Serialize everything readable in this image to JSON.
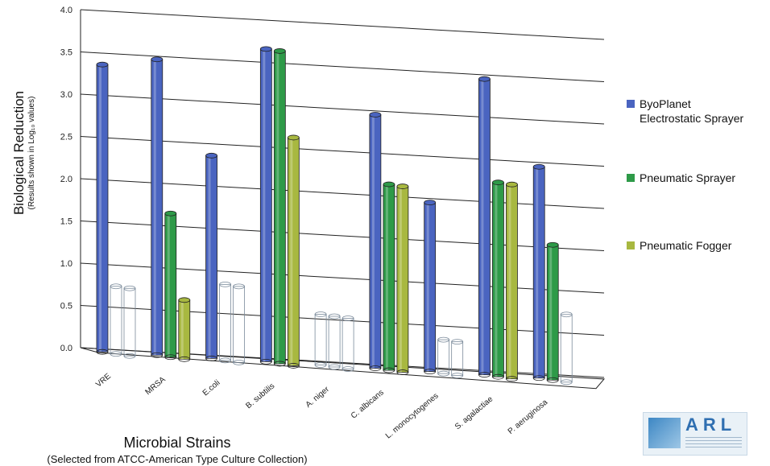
{
  "chart_data": {
    "type": "bar",
    "ylabel": "Biological Reduction",
    "ylabel_sub": "(Results shown in Log₁₀ values)",
    "xlabel": "Microbial Strains",
    "xlabel_sub": "(Selected from ATCC-American Type Culture Collection)",
    "ylim": [
      0,
      4.0
    ],
    "y_ticks": [
      "0.0",
      "0.5",
      "1.0",
      "1.5",
      "2.0",
      "2.5",
      "3.0",
      "3.5",
      "4.0"
    ],
    "grid": true,
    "legend_position": "right",
    "categories": [
      "VRE",
      "MRSA",
      "E.coli",
      "B. subtilis",
      "A. niger",
      "C. albicans",
      "L. monocytogenes",
      "S. agalactiae",
      "P. aeruginosa"
    ],
    "series": [
      {
        "name": "ByoPlanet Electrostatic Sprayer",
        "color": "#4a64c0",
        "values": [
          3.4,
          3.5,
          2.4,
          3.7,
          0.6,
          3.0,
          2.0,
          3.5,
          2.5
        ]
      },
      {
        "name": "Pneumatic Sprayer",
        "color": "#2e9a48",
        "values": [
          0.8,
          1.7,
          0.9,
          3.7,
          0.6,
          2.2,
          0.4,
          2.3,
          1.6
        ]
      },
      {
        "name": "Pneumatic Fogger",
        "color": "#a8b840",
        "values": [
          0.8,
          0.7,
          0.9,
          2.7,
          0.6,
          2.2,
          0.4,
          2.3,
          0.8
        ]
      }
    ],
    "hollow_series_values_note": ""
  },
  "legend": {
    "items": [
      {
        "label_line1": "ByoPlanet",
        "label_line2": "Electrostatic Sprayer",
        "color": "#4a64c0"
      },
      {
        "label_line1": "Pneumatic Sprayer",
        "label_line2": "",
        "color": "#2e9a48"
      },
      {
        "label_line1": "Pneumatic Fogger",
        "label_line2": "",
        "color": "#a8b840"
      }
    ]
  },
  "logo": {
    "text": "ARL"
  }
}
